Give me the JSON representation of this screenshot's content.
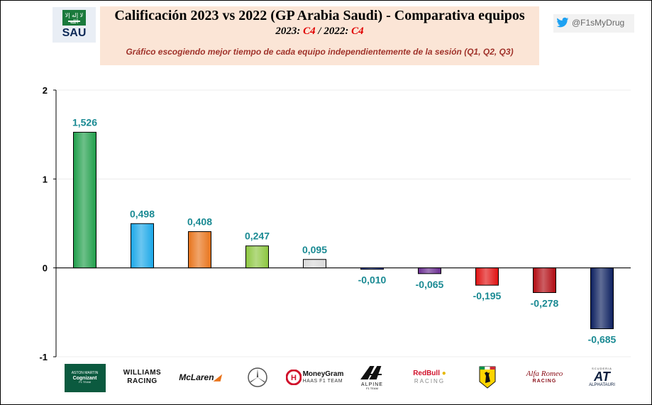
{
  "header": {
    "flag_code": "SAU",
    "flag_glyph": "لا إله إلا الله",
    "title": "Calificación 2023 vs 2022 (GP Arabia Saudi) - Comparativa equipos",
    "subtitle_2023_label": "2023: ",
    "subtitle_2023_value": "C4",
    "subtitle_sep": " / 2022: ",
    "subtitle_2022_value": "C4",
    "note": "Gráfico escogiendo  mejor tiempo de cada equipo independientemente  de la sesión  (Q1, Q2, Q3)",
    "handle": "@F1sMyDrug",
    "handle_icon": "twitter-bird-icon"
  },
  "chart_data": {
    "type": "bar",
    "categories": [
      "Aston Martin",
      "Williams",
      "McLaren",
      "Mercedes",
      "Haas",
      "Alpine",
      "Red Bull",
      "Ferrari",
      "Alfa Romeo",
      "AlphaTauri"
    ],
    "values": [
      1.526,
      0.498,
      0.408,
      0.247,
      0.095,
      -0.01,
      -0.065,
      -0.195,
      -0.278,
      -0.685
    ],
    "value_labels": [
      "1,526",
      "0,498",
      "0,408",
      "0,247",
      "0,095",
      "-0,010",
      "-0,065",
      "-0,195",
      "-0,278",
      "-0,685"
    ],
    "colors": [
      "#1f9e4a",
      "#1aa7e8",
      "#e8731a",
      "#8cc63f",
      "#d9d9d9",
      "#1f3fae",
      "#6a2c91",
      "#e01010",
      "#b0080f",
      "#0b1e5e"
    ],
    "yticks": [
      -1,
      0,
      1,
      2
    ],
    "ytick_labels": [
      "-1",
      "0",
      "1",
      "2"
    ],
    "ylim": [
      -1,
      2
    ],
    "grid": true,
    "legend": "none"
  },
  "team_logos": [
    {
      "icon": "aston-martin-logo",
      "lines": [
        "ASTON MARTIN",
        "Cognizant",
        "F1 TEAM"
      ]
    },
    {
      "icon": "williams-logo",
      "lines": [
        "WILLIAMS",
        "RACING"
      ]
    },
    {
      "icon": "mclaren-logo",
      "lines": [
        "McLaren"
      ]
    },
    {
      "icon": "mercedes-logo",
      "lines": []
    },
    {
      "icon": "haas-logo",
      "lines": [
        "MoneyGram",
        "HAAS F1 TEAM"
      ]
    },
    {
      "icon": "alpine-logo",
      "lines": [
        "ALPINE",
        "F1 TEAM"
      ]
    },
    {
      "icon": "redbull-logo",
      "lines": [
        "RedBull",
        "RACING"
      ]
    },
    {
      "icon": "ferrari-logo",
      "lines": []
    },
    {
      "icon": "alfa-romeo-logo",
      "lines": [
        "Alfa Romeo",
        "RACING"
      ]
    },
    {
      "icon": "alphatauri-logo",
      "lines": [
        "SCUDERIA",
        "AT",
        "ALPHATAURI"
      ]
    }
  ]
}
